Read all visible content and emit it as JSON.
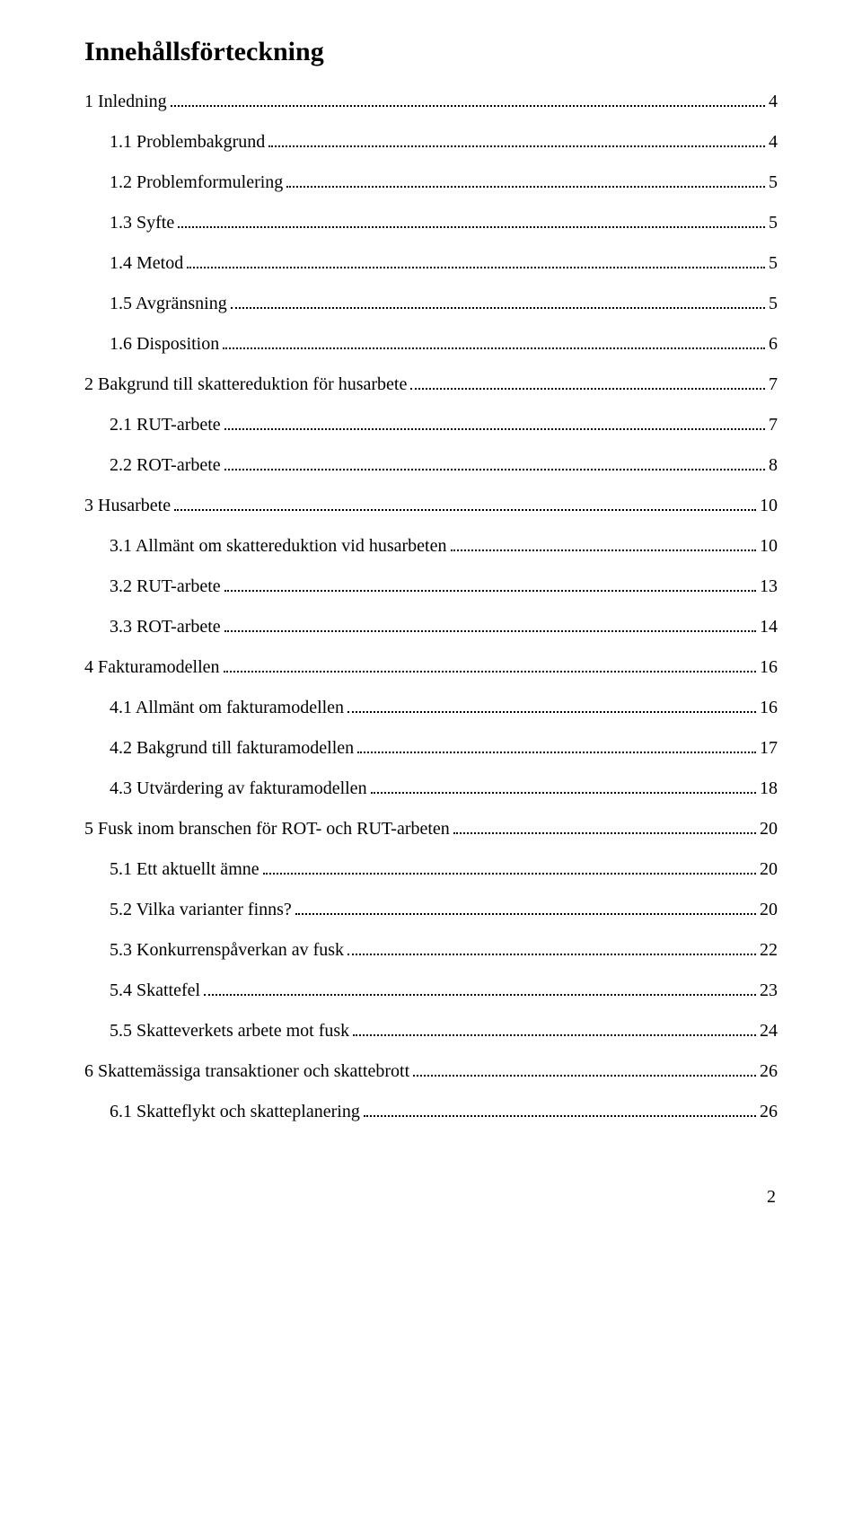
{
  "title": "Innehållsförteckning",
  "pageNumber": "2",
  "entries": [
    {
      "level": 0,
      "label": "1 Inledning",
      "page": "4",
      "gapBefore": false
    },
    {
      "level": 1,
      "label": "1.1 Problembakgrund",
      "page": "4",
      "gapBefore": true
    },
    {
      "level": 1,
      "label": "1.2 Problemformulering",
      "page": "5",
      "gapBefore": true
    },
    {
      "level": 1,
      "label": "1.3 Syfte",
      "page": "5",
      "gapBefore": true
    },
    {
      "level": 1,
      "label": "1.4 Metod",
      "page": "5",
      "gapBefore": true
    },
    {
      "level": 1,
      "label": "1.5 Avgränsning",
      "page": "5",
      "gapBefore": true
    },
    {
      "level": 1,
      "label": "1.6 Disposition",
      "page": "6",
      "gapBefore": true
    },
    {
      "level": 0,
      "label": "2 Bakgrund till skattereduktion för husarbete",
      "page": "7",
      "gapBefore": true
    },
    {
      "level": 1,
      "label": "2.1 RUT-arbete",
      "page": "7",
      "gapBefore": true
    },
    {
      "level": 1,
      "label": "2.2 ROT-arbete",
      "page": "8",
      "gapBefore": true
    },
    {
      "level": 0,
      "label": "3 Husarbete",
      "page": "10",
      "gapBefore": true
    },
    {
      "level": 1,
      "label": "3.1 Allmänt om skattereduktion vid husarbeten",
      "page": "10",
      "gapBefore": true
    },
    {
      "level": 1,
      "label": "3.2 RUT-arbete",
      "page": "13",
      "gapBefore": true
    },
    {
      "level": 1,
      "label": "3.3 ROT-arbete",
      "page": "14",
      "gapBefore": true
    },
    {
      "level": 0,
      "label": "4 Fakturamodellen",
      "page": "16",
      "gapBefore": true
    },
    {
      "level": 1,
      "label": "4.1 Allmänt om fakturamodellen",
      "page": "16",
      "gapBefore": true
    },
    {
      "level": 1,
      "label": "4.2 Bakgrund till fakturamodellen",
      "page": "17",
      "gapBefore": true
    },
    {
      "level": 1,
      "label": "4.3 Utvärdering av fakturamodellen",
      "page": "18",
      "gapBefore": true
    },
    {
      "level": 0,
      "label": "5 Fusk inom branschen för ROT- och RUT-arbeten",
      "page": "20",
      "gapBefore": true
    },
    {
      "level": 1,
      "label": "5.1 Ett aktuellt ämne",
      "page": "20",
      "gapBefore": true
    },
    {
      "level": 1,
      "label": "5.2 Vilka varianter finns?",
      "page": "20",
      "gapBefore": true
    },
    {
      "level": 1,
      "label": "5.3 Konkurrenspåverkan av fusk",
      "page": "22",
      "gapBefore": true
    },
    {
      "level": 1,
      "label": "5.4 Skattefel",
      "page": "23",
      "gapBefore": true
    },
    {
      "level": 1,
      "label": "5.5 Skatteverkets arbete mot fusk",
      "page": "24",
      "gapBefore": true
    },
    {
      "level": 0,
      "label": "6 Skattemässiga transaktioner och skattebrott",
      "page": "26",
      "gapBefore": true
    },
    {
      "level": 1,
      "label": "6.1 Skatteflykt och skatteplanering",
      "page": "26",
      "gapBefore": true
    }
  ]
}
